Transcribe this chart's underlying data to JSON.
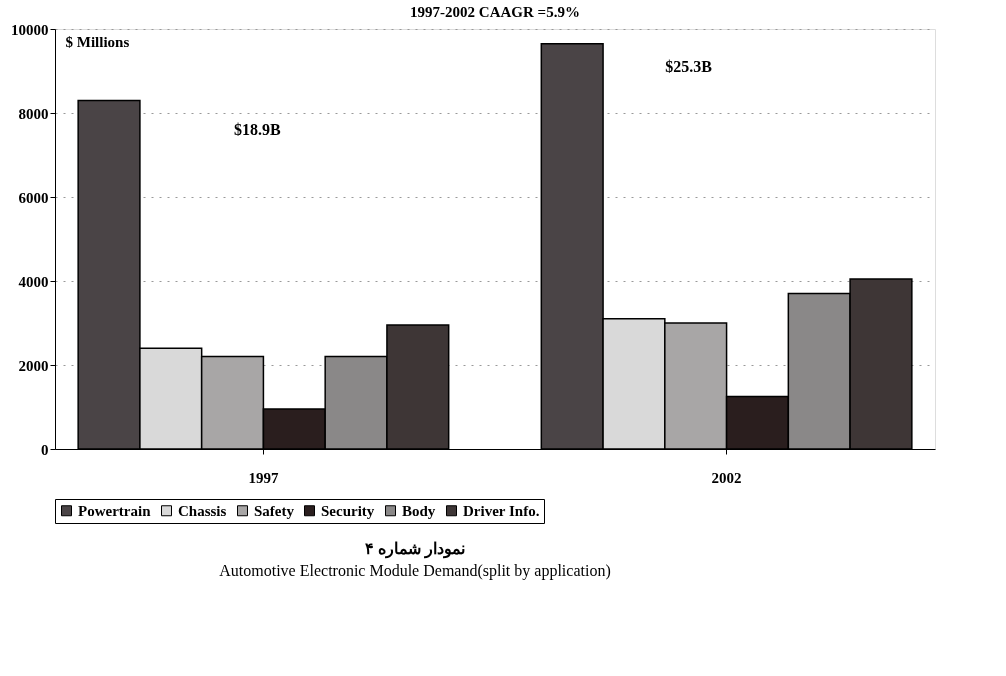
{
  "chart_data": {
    "type": "bar",
    "title": "1997-2002 CAAGR =5.9%",
    "ylabel": "$ Millions",
    "categories": [
      "1997",
      "2002"
    ],
    "series": [
      {
        "name": "Powertrain",
        "color": "#4a4446",
        "values": [
          8300,
          9650
        ]
      },
      {
        "name": "Chassis",
        "color": "#d9d9d9",
        "values": [
          2400,
          3100
        ]
      },
      {
        "name": "Safety",
        "color": "#a8a6a6",
        "values": [
          2200,
          3000
        ]
      },
      {
        "name": "Security",
        "color": "#2a1e1e",
        "values": [
          950,
          1250
        ]
      },
      {
        "name": "Body",
        "color": "#8a8888",
        "values": [
          2200,
          3700
        ]
      },
      {
        "name": "Driver Info.",
        "color": "#3e3636",
        "values": [
          2950,
          4050
        ]
      }
    ],
    "ylim": [
      0,
      10000
    ],
    "yticks": [
      0,
      2000,
      4000,
      6000,
      8000,
      10000
    ],
    "grid": "y",
    "legend": "bottom",
    "annotations": [
      "$18.9B",
      "$25.3B",
      "نمودار شماره ۴",
      "Automotive Electronic Module Demand(split by application)"
    ]
  }
}
